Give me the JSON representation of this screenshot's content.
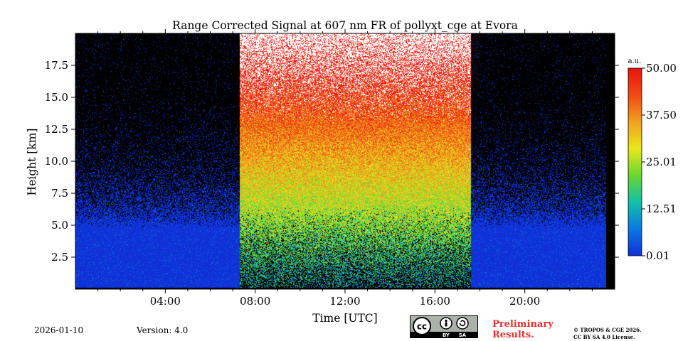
{
  "chart_data": {
    "type": "heatmap",
    "title": "Range Corrected Signal at 607 nm FR of pollyxt_cge at Evora",
    "xlabel": "Time [UTC]",
    "ylabel": "Height [km]",
    "xlim": [
      0,
      24
    ],
    "ylim": [
      0,
      20
    ],
    "x_ticks": [
      {
        "value": 4,
        "label": "04:00"
      },
      {
        "value": 8,
        "label": "08:00"
      },
      {
        "value": 12,
        "label": "12:00"
      },
      {
        "value": 16,
        "label": "16:00"
      },
      {
        "value": 20,
        "label": "20:00"
      }
    ],
    "y_ticks": [
      {
        "value": 2.5,
        "label": "2.5"
      },
      {
        "value": 5.0,
        "label": "5.0"
      },
      {
        "value": 7.5,
        "label": "7.5"
      },
      {
        "value": 10.0,
        "label": "10.0"
      },
      {
        "value": 12.5,
        "label": "12.5"
      },
      {
        "value": 15.0,
        "label": "15.0"
      },
      {
        "value": 17.5,
        "label": "17.5"
      }
    ],
    "daylight_period_hours": [
      7.3,
      17.6
    ],
    "data_end_hour": 23.6,
    "colorbar": {
      "unit_label": "a.u.",
      "range": [
        0.01,
        50.0
      ],
      "ticks": [
        {
          "value": 0.01,
          "label": "0.01"
        },
        {
          "value": 12.51,
          "label": "12.51"
        },
        {
          "value": 25.01,
          "label": "25.01"
        },
        {
          "value": 37.5,
          "label": "37.50"
        },
        {
          "value": 50.0,
          "label": "50.00"
        }
      ],
      "colors": [
        "#1030d8",
        "#0b78e0",
        "#13c0a8",
        "#6ad630",
        "#e8e81a",
        "#f0a020",
        "#f04a14",
        "#e8140e"
      ]
    }
  },
  "footer": {
    "date": "2026-01-10",
    "version": "Version: 4.0",
    "preliminary_line1": "Preliminary",
    "preliminary_line2": "Results.",
    "copyright_line1": "© TROPOS & CGE 2026.",
    "copyright_line2": "CC BY SA 4.0 License.",
    "cc_badge_text": "cc",
    "cc_by": "BY",
    "cc_sa": "SA"
  }
}
